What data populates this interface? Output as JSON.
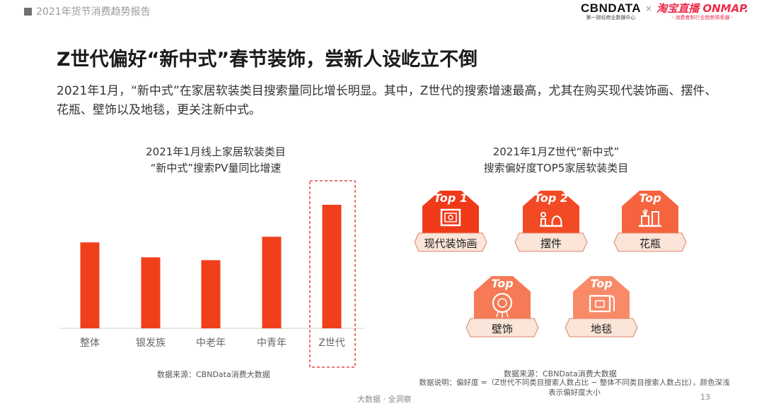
{
  "header": {
    "report_title": "2021年货节消费趋势报告",
    "brand_main": "CBNDATA",
    "brand_sub": "第一财经商业数据中心",
    "brand_sep": "×",
    "partner_main": "淘宝直播 ONMAP.",
    "partner_sub": "- 消费者和行业趋势探索器 -"
  },
  "title": "Z世代偏好“新中式”春节装饰，尝新人设屹立不倒",
  "description": "2021年1月，“新中式”在家居软装类目搜索量同比增长明显。其中，Z世代的搜索增速最高，尤其在购买现代装饰画、摆件、花瓶、壁饰以及地毯，更关注新中式。",
  "chart_data": {
    "type": "bar",
    "title": "2021年1月线上家居软装类目“新中式”搜索PV量同比增速",
    "title_line1": "2021年1月线上家居软装类目",
    "title_line2": "“新中式”搜索PV量同比增速",
    "categories": [
      "整体",
      "银发族",
      "中老年",
      "中青年",
      "Z世代"
    ],
    "values": [
      121,
      100,
      96,
      129,
      174
    ],
    "highlight": "Z世代",
    "bar_color": "#f0401b",
    "axis_values_shown": false
  },
  "top5": {
    "title_line1": "2021年1月Z世代“新中式”",
    "title_line2": "搜索偏好度TOP5家居软装类目",
    "items": [
      {
        "top": "Top 1",
        "label": "现代装饰画",
        "icon": "framed-picture-icon",
        "color": "#f03a19"
      },
      {
        "top": "Top 2",
        "label": "摆件",
        "icon": "ornament-icon",
        "color": "#f24a24"
      },
      {
        "top": "Top",
        "label": "花瓶",
        "icon": "vase-icon",
        "color": "#f5643e"
      },
      {
        "top": "Top",
        "label": "壁饰",
        "icon": "wall-hanging-icon",
        "color": "#f67a55"
      },
      {
        "top": "Top",
        "label": "地毯",
        "icon": "carpet-icon",
        "color": "#f88a68"
      }
    ]
  },
  "sources": {
    "left": "数据来源：CBNData消费大数据",
    "right": "数据来源：CBNData消费大数据",
    "note_line1": "数据说明：偏好度 =（Z世代不同类目搜索人数占比 − 整体不同类目搜索人数占比），颜色深浅",
    "note_line2": "表示偏好度大小"
  },
  "footer": {
    "tagline": "大数据 · 全洞察",
    "page": "13"
  }
}
